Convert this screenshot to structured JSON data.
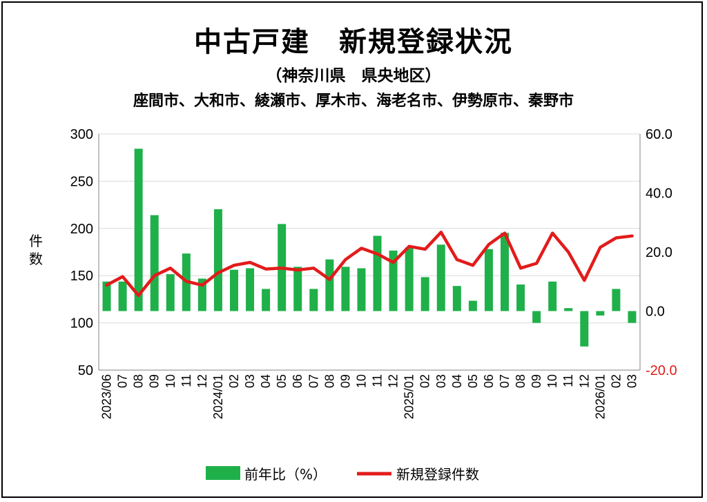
{
  "titles": {
    "main": "中古戸建　新規登録状況",
    "sub": "（神奈川県　県央地区）",
    "area": "座間市、大和市、綾瀬市、厚木市、海老名市、伊勢原市、秦野市"
  },
  "chart_data": {
    "type": "bar+line",
    "categories": [
      "2023/06",
      "07",
      "08",
      "09",
      "10",
      "11",
      "12",
      "2024/01",
      "02",
      "03",
      "04",
      "05",
      "06",
      "07",
      "08",
      "09",
      "10",
      "11",
      "12",
      "2025/01",
      "02",
      "03",
      "04",
      "05",
      "06",
      "07",
      "08",
      "09",
      "10",
      "11",
      "12",
      "2026/01",
      "02",
      "03"
    ],
    "left_axis": {
      "label": "件数",
      "min": 50,
      "max": 300,
      "ticks": [
        "300",
        "250",
        "200",
        "150",
        "100",
        "50"
      ]
    },
    "right_axis": {
      "min": -20,
      "max": 60,
      "ticks": [
        "60.0",
        "40.0",
        "20.0",
        "0.0",
        "-20.0"
      ],
      "negative_color": "#e31b1b"
    },
    "series": [
      {
        "name": "前年比(%)",
        "kind": "bar",
        "axis": "right",
        "color": "#1fb04a",
        "values": [
          10,
          10,
          55,
          32.5,
          12.5,
          19.5,
          11,
          34.5,
          14,
          14.5,
          7.5,
          29.5,
          15,
          7.5,
          17.5,
          15,
          14.5,
          25.5,
          20.5,
          21.5,
          11.5,
          22.5,
          8.5,
          3.5,
          21,
          26.5,
          9,
          -4,
          10,
          1,
          -12,
          -1.5,
          7.5,
          -4
        ]
      },
      {
        "name": "新規登録件数",
        "kind": "line",
        "axis": "left",
        "color": "#e31b1b",
        "values": [
          140,
          149,
          129,
          150,
          158,
          144,
          140,
          153,
          161,
          164,
          157,
          158,
          156,
          158,
          146,
          167,
          179,
          173,
          164,
          181,
          178,
          196,
          167,
          161,
          183,
          195,
          158,
          163,
          195,
          175,
          145,
          180,
          190,
          192
        ]
      }
    ],
    "legend": {
      "placement": "bottom",
      "bar_label": "前年比（%）",
      "line_label": "新規登録件数"
    }
  }
}
